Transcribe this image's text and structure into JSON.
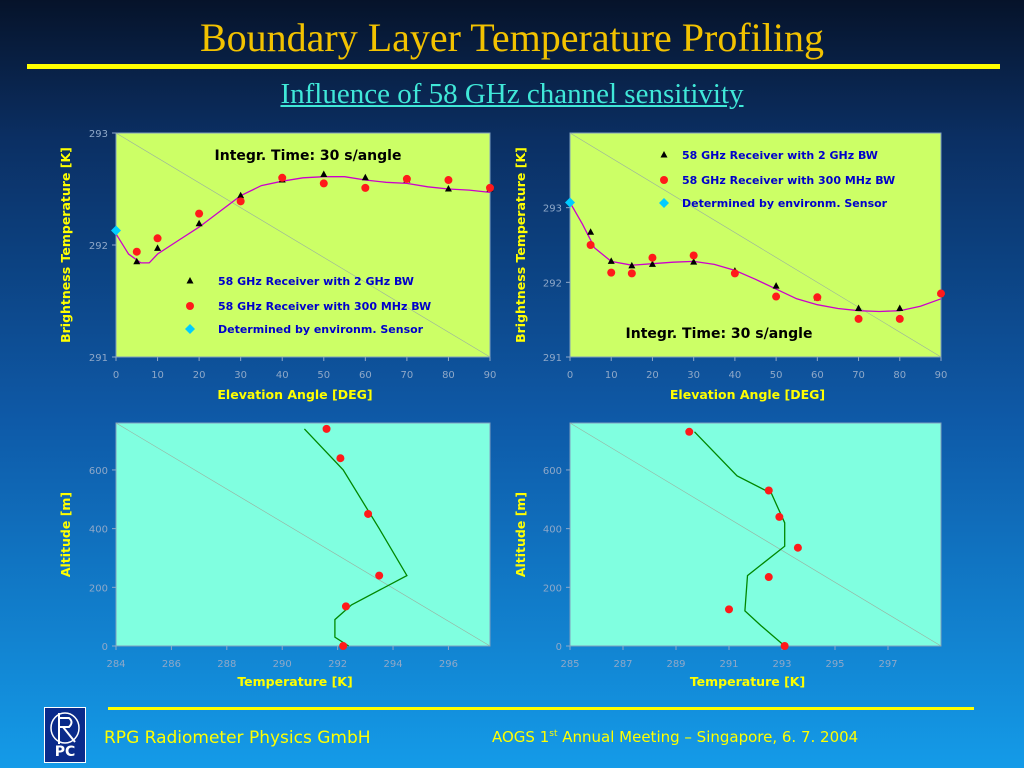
{
  "slide": {
    "title": "Boundary Layer Temperature Profiling",
    "subtitle": "Influence of 58 GHz channel sensitivity",
    "footer_company": "RPG Radiometer Physics GmbH",
    "footer_meeting_a": "AOGS 1",
    "footer_meeting_sup": "st",
    "footer_meeting_b": " Annual Meeting  – Singapore,  6. 7.  2004",
    "logo_text": "PC",
    "colors": {
      "accent": "#ffff00",
      "title": "#f2c200",
      "subtitle": "#40e8d8",
      "panel_top": "#ccff66",
      "panel_bottom": "#80ffe0"
    }
  },
  "chart_data": [
    {
      "type": "scatter",
      "xlabel": "Elevation Angle [DEG]",
      "ylabel": "Brightness Temperature [K]",
      "xlim": [
        0,
        90
      ],
      "ylim": [
        291,
        293
      ],
      "xticks": [
        0,
        10,
        20,
        30,
        40,
        50,
        60,
        70,
        80,
        90
      ],
      "yticks": [
        291,
        292,
        293
      ],
      "annotation": "Integr. Time: 30 s/angle",
      "legend": [
        "58 GHz Receiver with 2 GHz BW",
        "58 GHz Receiver with 300 MHz BW",
        "Determined by environm. Sensor"
      ],
      "series": [
        {
          "name": "58 GHz Receiver with 2 GHz BW",
          "marker": "triangle",
          "color": "#000000",
          "x": [
            5,
            10,
            20,
            30,
            40,
            50,
            60,
            70,
            80,
            90
          ],
          "y": [
            291.85,
            291.97,
            292.19,
            292.44,
            292.58,
            292.63,
            292.6,
            292.58,
            292.5,
            292.5
          ]
        },
        {
          "name": "58 GHz Receiver with 300 MHz BW",
          "marker": "dot",
          "color": "#ff1a1a",
          "x": [
            5,
            10,
            20,
            30,
            40,
            50,
            60,
            70,
            80,
            90
          ],
          "y": [
            291.94,
            292.06,
            292.28,
            292.39,
            292.6,
            292.55,
            292.51,
            292.59,
            292.58,
            292.51
          ]
        },
        {
          "name": "Determined by environm. Sensor",
          "marker": "diamond",
          "color": "#00ccff",
          "x": [
            0
          ],
          "y": [
            292.13
          ]
        },
        {
          "name": "fit",
          "marker": "line",
          "color": "#cc00cc",
          "x": [
            0,
            3,
            6,
            8,
            10,
            15,
            20,
            25,
            30,
            35,
            40,
            45,
            50,
            55,
            60,
            65,
            70,
            75,
            80,
            85,
            90
          ],
          "y": [
            292.1,
            291.92,
            291.84,
            291.84,
            291.92,
            292.04,
            292.16,
            292.3,
            292.44,
            292.53,
            292.57,
            292.6,
            292.61,
            292.61,
            292.58,
            292.56,
            292.55,
            292.52,
            292.5,
            292.49,
            292.47
          ]
        }
      ]
    },
    {
      "type": "scatter",
      "xlabel": "Elevation Angle [DEG]",
      "ylabel": "Brightness Temperature [K]",
      "xlim": [
        0,
        90
      ],
      "ylim": [
        291,
        294
      ],
      "xticks": [
        0,
        10,
        20,
        30,
        40,
        50,
        60,
        70,
        80,
        90
      ],
      "yticks": [
        291,
        292,
        293
      ],
      "annotation": "Integr. Time: 30 s/angle",
      "legend": [
        "58 GHz Receiver with 2 GHz BW",
        "58 GHz Receiver with 300 MHz BW",
        "Determined by environm. Sensor"
      ],
      "series": [
        {
          "name": "58 GHz Receiver with 2 GHz BW",
          "marker": "triangle",
          "color": "#000000",
          "x": [
            5,
            10,
            15,
            20,
            30,
            40,
            50,
            60,
            70,
            80,
            90
          ],
          "y": [
            292.67,
            292.28,
            292.22,
            292.24,
            292.27,
            292.15,
            291.95,
            291.79,
            291.65,
            291.65,
            291.85
          ]
        },
        {
          "name": "58 GHz Receiver with 300 MHz BW",
          "marker": "dot",
          "color": "#ff1a1a",
          "x": [
            5,
            10,
            15,
            20,
            30,
            40,
            50,
            60,
            70,
            80,
            90
          ],
          "y": [
            292.5,
            292.13,
            292.12,
            292.33,
            292.36,
            292.12,
            291.81,
            291.8,
            291.51,
            291.51,
            291.85
          ]
        },
        {
          "name": "Determined by environm. Sensor",
          "marker": "diamond",
          "color": "#00ccff",
          "x": [
            0
          ],
          "y": [
            293.07
          ]
        },
        {
          "name": "fit",
          "marker": "line",
          "color": "#cc00cc",
          "x": [
            0,
            3,
            6,
            10,
            15,
            20,
            25,
            30,
            35,
            40,
            45,
            50,
            55,
            60,
            65,
            70,
            75,
            80,
            85,
            90
          ],
          "y": [
            293.07,
            292.78,
            292.46,
            292.28,
            292.23,
            292.25,
            292.27,
            292.28,
            292.24,
            292.16,
            292.04,
            291.91,
            291.78,
            291.7,
            291.65,
            291.62,
            291.61,
            291.62,
            291.68,
            291.78
          ]
        }
      ]
    },
    {
      "type": "line",
      "xlabel": "Temperature [K]",
      "ylabel": "Altitude [m]",
      "xlim": [
        284,
        297.5
      ],
      "ylim": [
        0,
        760
      ],
      "xticks": [
        284,
        286,
        288,
        290,
        292,
        294,
        296
      ],
      "yticks": [
        0,
        200,
        400,
        600
      ],
      "series": [
        {
          "name": "retrieved profile",
          "marker": "line",
          "color": "#008800",
          "x": [
            292.4,
            291.9,
            291.9,
            292.5,
            294.5,
            293.5,
            292.2,
            290.8
          ],
          "y": [
            0,
            30,
            90,
            140,
            240,
            400,
            600,
            740
          ]
        },
        {
          "name": "measured",
          "marker": "dot",
          "color": "#ff1a1a",
          "x": [
            292.2,
            292.3,
            293.5,
            293.1,
            292.1,
            291.6
          ],
          "y": [
            0,
            135,
            240,
            450,
            640,
            740
          ]
        }
      ]
    },
    {
      "type": "line",
      "xlabel": "Temperature [K]",
      "ylabel": "Altitude [m]",
      "xlim": [
        285,
        299
      ],
      "ylim": [
        0,
        760
      ],
      "xticks": [
        285,
        287,
        289,
        291,
        293,
        295,
        297
      ],
      "yticks": [
        0,
        200,
        400,
        600
      ],
      "series": [
        {
          "name": "retrieved profile",
          "marker": "line",
          "color": "#008800",
          "x": [
            293.1,
            292.2,
            291.6,
            291.7,
            293.1,
            293.1,
            292.6,
            291.3,
            289.7
          ],
          "y": [
            0,
            70,
            120,
            240,
            340,
            420,
            520,
            580,
            730
          ]
        },
        {
          "name": "measured",
          "marker": "dot",
          "color": "#ff1a1a",
          "x": [
            293.1,
            291.0,
            292.5,
            293.6,
            292.9,
            292.5,
            289.5
          ],
          "y": [
            0,
            125,
            235,
            335,
            440,
            530,
            730
          ]
        }
      ]
    }
  ]
}
